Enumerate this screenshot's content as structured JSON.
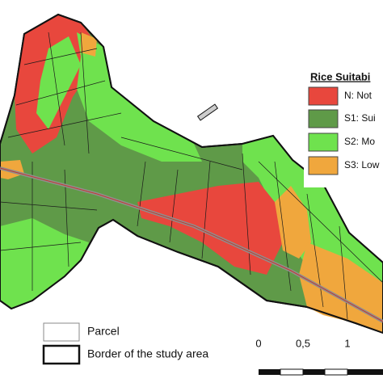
{
  "legend": {
    "title": "Rice Suitabi",
    "items": [
      "N: Not",
      "S1: Sui",
      "S2: Mo",
      "S3: Low"
    ]
  },
  "map_legend": {
    "items": [
      "Parcel",
      "Border of the study area"
    ]
  },
  "scale_bar": {
    "labels": [
      "0",
      "0,5",
      "1"
    ]
  }
}
